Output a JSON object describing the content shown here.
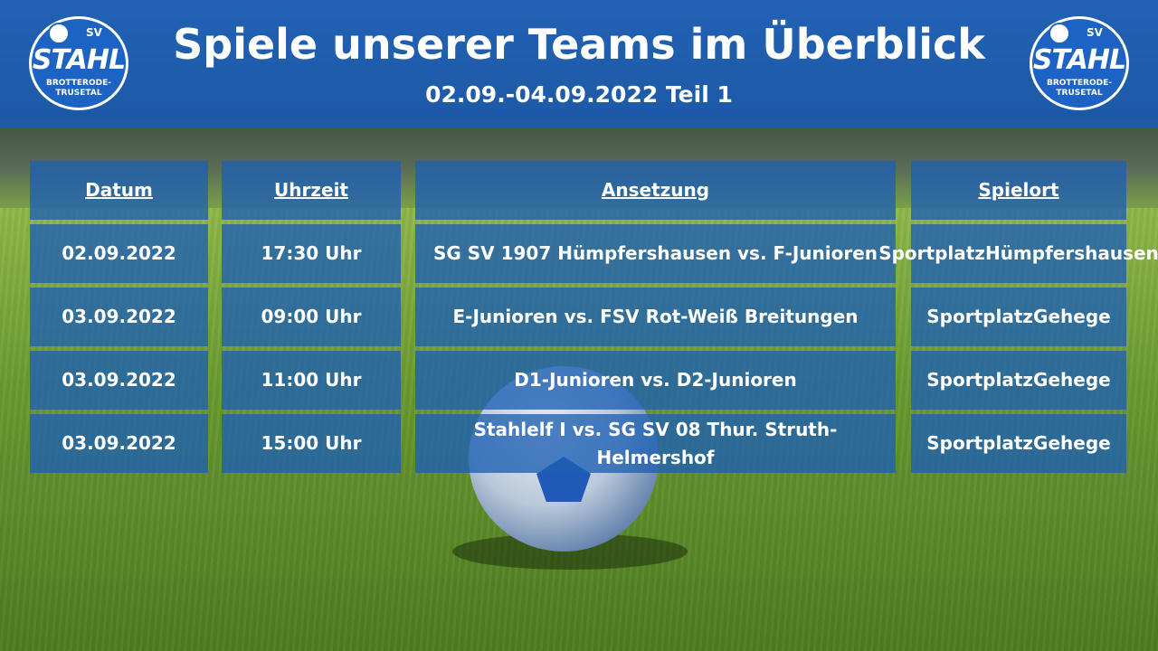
{
  "header": {
    "title": "Spiele unserer Teams im Überblick",
    "subtitle": "02.09.-04.09.2022 Teil 1"
  },
  "logo": {
    "sv": "SV",
    "name": "STAHL",
    "line1": "BROTTERODE-",
    "line2": "TRUSETAL"
  },
  "table": {
    "columns": [
      "Datum",
      "Uhrzeit",
      "Ansetzung",
      "Spielort"
    ],
    "rows": [
      {
        "date": "02.09.2022",
        "time": "17:30 Uhr",
        "match": "SG SV 1907 Hümpfershausen vs. F-Junioren",
        "venue1": "Sportplatz",
        "venue2": "Hümpfershausen"
      },
      {
        "date": "03.09.2022",
        "time": "09:00 Uhr",
        "match": "E-Junioren vs. FSV Rot-Weiß Breitungen",
        "venue1": "Sportplatz",
        "venue2": "Gehege"
      },
      {
        "date": "03.09.2022",
        "time": "11:00 Uhr",
        "match": "D1-Junioren vs. D2-Junioren",
        "venue1": "Sportplatz",
        "venue2": "Gehege"
      },
      {
        "date": "03.09.2022",
        "time": "15:00 Uhr",
        "match": "Stahlelf I vs. SG SV 08 Thur. Struth-Helmershof",
        "venue1": "Sportplatz",
        "venue2": "Gehege"
      }
    ]
  },
  "colors": {
    "header": "#185ab4",
    "cell": "#1e5fb4"
  }
}
